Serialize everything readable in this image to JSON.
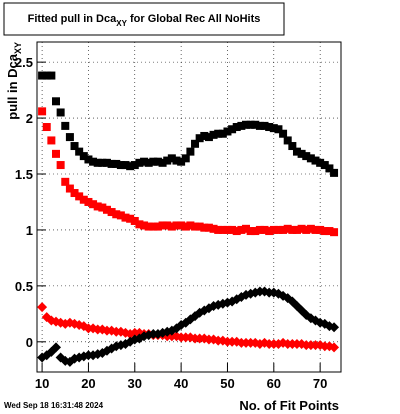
{
  "chart_data": {
    "type": "scatter",
    "title": {
      "text": "Fitted pull in Dca",
      "sub": "XY",
      "rest": " for Global Rec All NoHits"
    },
    "x_label": "No. of Fit Points",
    "y_label": {
      "text": "pull in Dca",
      "sub": "XY"
    },
    "timestamp": "Wed Sep 18 16:31:48 2024",
    "xlim": [
      8.9,
      74.5
    ],
    "ylim": [
      -0.27,
      2.68
    ],
    "xticks": [
      10,
      20,
      30,
      40,
      50,
      60,
      70
    ],
    "yticks": [
      0,
      0.5,
      1,
      1.5,
      2,
      2.5
    ],
    "grid": true,
    "x": [
      10,
      11,
      12,
      13,
      14,
      15,
      16,
      17,
      18,
      19,
      20,
      21,
      22,
      23,
      24,
      25,
      26,
      27,
      28,
      29,
      30,
      31,
      32,
      33,
      34,
      35,
      36,
      37,
      38,
      39,
      40,
      41,
      42,
      43,
      44,
      45,
      46,
      47,
      48,
      49,
      50,
      51,
      52,
      53,
      54,
      55,
      56,
      57,
      58,
      59,
      60,
      61,
      62,
      63,
      64,
      65,
      66,
      67,
      68,
      69,
      70,
      71,
      72,
      73
    ],
    "series": [
      {
        "color": "#000000",
        "marker": "square",
        "values": [
          2.38,
          2.38,
          2.38,
          2.15,
          2.05,
          1.93,
          1.83,
          1.75,
          1.7,
          1.66,
          1.63,
          1.61,
          1.6,
          1.6,
          1.6,
          1.59,
          1.59,
          1.58,
          1.58,
          1.57,
          1.58,
          1.6,
          1.61,
          1.6,
          1.61,
          1.61,
          1.6,
          1.62,
          1.64,
          1.62,
          1.61,
          1.64,
          1.7,
          1.77,
          1.82,
          1.84,
          1.83,
          1.85,
          1.86,
          1.86,
          1.88,
          1.9,
          1.92,
          1.93,
          1.94,
          1.94,
          1.94,
          1.93,
          1.93,
          1.92,
          1.91,
          1.9,
          1.86,
          1.8,
          1.75,
          1.7,
          1.68,
          1.66,
          1.64,
          1.62,
          1.6,
          1.58,
          1.55,
          1.51
        ]
      },
      {
        "color": "#ff0000",
        "marker": "square",
        "values": [
          2.06,
          1.92,
          1.8,
          1.68,
          1.58,
          1.43,
          1.37,
          1.33,
          1.3,
          1.27,
          1.25,
          1.23,
          1.21,
          1.2,
          1.18,
          1.16,
          1.14,
          1.13,
          1.11,
          1.1,
          1.08,
          1.05,
          1.04,
          1.03,
          1.03,
          1.03,
          1.04,
          1.04,
          1.03,
          1.04,
          1.04,
          1.03,
          1.04,
          1.03,
          1.03,
          1.02,
          1.02,
          1.01,
          1.0,
          1.0,
          1.0,
          1.0,
          0.99,
          1.0,
          1.01,
          0.99,
          0.99,
          1.0,
          1.0,
          0.99,
          1.0,
          1.0,
          1.0,
          1.01,
          1.0,
          1.0,
          1.01,
          1.0,
          1.01,
          1.0,
          1.0,
          0.99,
          0.99,
          0.98
        ]
      },
      {
        "color": "#ff0000",
        "marker": "diamond",
        "values": [
          0.31,
          0.22,
          0.19,
          0.18,
          0.17,
          0.16,
          0.17,
          0.16,
          0.15,
          0.14,
          0.12,
          0.12,
          0.11,
          0.11,
          0.1,
          0.1,
          0.09,
          0.09,
          0.08,
          0.07,
          0.08,
          0.08,
          0.07,
          0.07,
          0.06,
          0.06,
          0.06,
          0.05,
          0.05,
          0.05,
          0.04,
          0.04,
          0.04,
          0.03,
          0.03,
          0.03,
          0.02,
          0.02,
          0.01,
          0.01,
          0.0,
          0.0,
          0.0,
          -0.01,
          -0.01,
          -0.01,
          -0.01,
          -0.02,
          -0.01,
          -0.02,
          -0.02,
          -0.02,
          -0.01,
          -0.02,
          -0.02,
          -0.02,
          -0.02,
          -0.03,
          -0.03,
          -0.03,
          -0.03,
          -0.04,
          -0.04,
          -0.05
        ]
      },
      {
        "color": "#000000",
        "marker": "diamond",
        "values": [
          -0.14,
          -0.12,
          -0.09,
          -0.05,
          -0.14,
          -0.17,
          -0.18,
          -0.15,
          -0.14,
          -0.13,
          -0.12,
          -0.12,
          -0.11,
          -0.1,
          -0.08,
          -0.06,
          -0.04,
          -0.03,
          -0.02,
          0.0,
          0.02,
          0.03,
          0.05,
          0.06,
          0.07,
          0.07,
          0.08,
          0.09,
          0.1,
          0.12,
          0.15,
          0.17,
          0.2,
          0.23,
          0.26,
          0.28,
          0.3,
          0.32,
          0.33,
          0.34,
          0.35,
          0.36,
          0.38,
          0.4,
          0.42,
          0.43,
          0.44,
          0.45,
          0.45,
          0.44,
          0.44,
          0.43,
          0.41,
          0.39,
          0.36,
          0.32,
          0.28,
          0.24,
          0.21,
          0.19,
          0.17,
          0.16,
          0.14,
          0.13
        ]
      }
    ]
  }
}
